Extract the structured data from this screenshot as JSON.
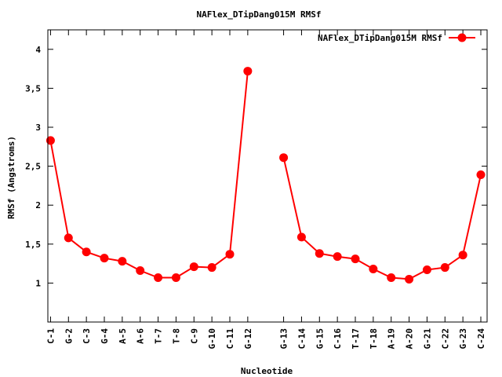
{
  "chart_data": {
    "type": "line",
    "title": "NAFlex_DTipDang015M RMSf",
    "xlabel": "Nucleotide",
    "ylabel": "RMSf (Angstroms)",
    "ylim": [
      0.5,
      4.25
    ],
    "yticks": [
      {
        "value": 1,
        "label": "1"
      },
      {
        "value": 1.5,
        "label": "1,5"
      },
      {
        "value": 2,
        "label": "2"
      },
      {
        "value": 2.5,
        "label": "2,5"
      },
      {
        "value": 3,
        "label": "3"
      },
      {
        "value": 3.5,
        "label": "3,5"
      },
      {
        "value": 4,
        "label": "4"
      }
    ],
    "xlim": [
      0.85,
      25.35
    ],
    "grid": false,
    "legend": "top-right",
    "series_color": "#ff0000",
    "series": [
      {
        "name": "NAFlex_DTipDang015M RMSf",
        "segments": [
          [
            {
              "x": 1,
              "label": "C-1",
              "y": 2.83
            },
            {
              "x": 2,
              "label": "G-2",
              "y": 1.58
            },
            {
              "x": 3,
              "label": "C-3",
              "y": 1.4
            },
            {
              "x": 4,
              "label": "G-4",
              "y": 1.32
            },
            {
              "x": 5,
              "label": "A-5",
              "y": 1.28
            },
            {
              "x": 6,
              "label": "A-6",
              "y": 1.16
            },
            {
              "x": 7,
              "label": "T-7",
              "y": 1.07
            },
            {
              "x": 8,
              "label": "T-8",
              "y": 1.07
            },
            {
              "x": 9,
              "label": "C-9",
              "y": 1.21
            },
            {
              "x": 10,
              "label": "G-10",
              "y": 1.2
            },
            {
              "x": 11,
              "label": "C-11",
              "y": 1.37
            },
            {
              "x": 12,
              "label": "G-12",
              "y": 3.72
            }
          ],
          [
            {
              "x": 14,
              "label": "G-13",
              "y": 2.61
            },
            {
              "x": 15,
              "label": "C-14",
              "y": 1.59
            },
            {
              "x": 16,
              "label": "G-15",
              "y": 1.38
            },
            {
              "x": 17,
              "label": "C-16",
              "y": 1.34
            },
            {
              "x": 18,
              "label": "T-17",
              "y": 1.31
            },
            {
              "x": 19,
              "label": "T-18",
              "y": 1.18
            },
            {
              "x": 20,
              "label": "A-19",
              "y": 1.07
            },
            {
              "x": 21,
              "label": "A-20",
              "y": 1.05
            },
            {
              "x": 22,
              "label": "G-21",
              "y": 1.17
            },
            {
              "x": 23,
              "label": "C-22",
              "y": 1.2
            },
            {
              "x": 24,
              "label": "G-23",
              "y": 1.36
            },
            {
              "x": 25,
              "label": "C-24",
              "y": 2.39
            }
          ]
        ]
      }
    ]
  }
}
